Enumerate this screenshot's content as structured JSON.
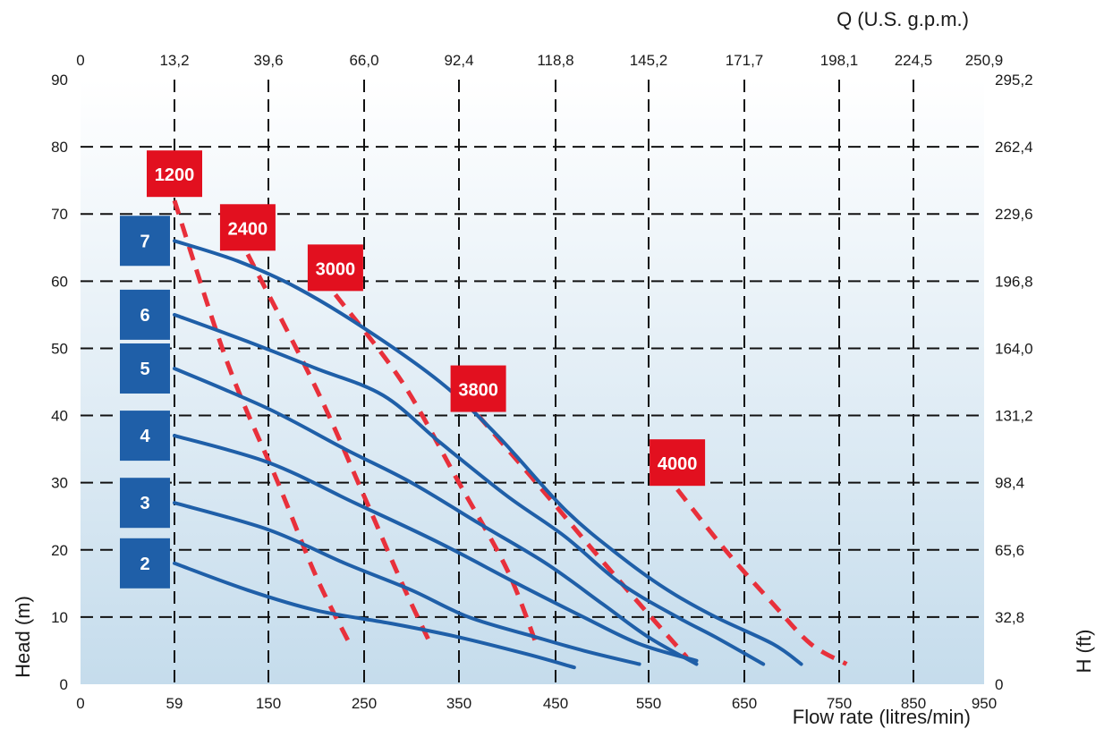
{
  "chart_data": {
    "type": "line",
    "title_top": "Q (U.S. g.p.m.)",
    "xlabel": "Flow rate (litres/min)",
    "ylabel": "Head (m)",
    "ylabel_right": "H (ft)",
    "xlim": [
      0,
      950
    ],
    "ylim": [
      0,
      90
    ],
    "x_ticks": [
      0,
      59,
      150,
      250,
      350,
      450,
      550,
      650,
      750,
      850,
      950
    ],
    "x_tick_labels": [
      "0",
      "59",
      "150",
      "250",
      "350",
      "450",
      "550",
      "650",
      "750",
      "850",
      "950"
    ],
    "x_top_ticks": [
      0,
      59,
      150,
      250,
      350,
      450,
      550,
      650,
      750,
      850,
      950
    ],
    "x_top_tick_labels": [
      "0",
      "13,2",
      "39,6",
      "66,0",
      "92,4",
      "118,8",
      "145,2",
      "171,7",
      "198,1",
      "224,5",
      "250,9"
    ],
    "y_ticks": [
      0,
      10,
      20,
      30,
      40,
      50,
      60,
      70,
      80,
      90
    ],
    "y_tick_labels": [
      "0",
      "10",
      "20",
      "30",
      "40",
      "50",
      "60",
      "70",
      "80",
      "90"
    ],
    "y_right_tick_labels": [
      "0",
      "32,8",
      "65,6",
      "98,4",
      "131,2",
      "164,0",
      "196,8",
      "229,6",
      "262,4",
      "295,2"
    ],
    "grid": true,
    "colors": {
      "curve": "#1f5fa8",
      "badge_blue": "#1f5fa8",
      "badge_red": "#e2101f",
      "dashed": "#e8303b",
      "bg_top": "#ffffff",
      "bg_bottom": "#c5dcec"
    },
    "series": [
      {
        "name": "7",
        "x": [
          59,
          120,
          180,
          250,
          330,
          390,
          460,
          520,
          570,
          620,
          680,
          710
        ],
        "y": [
          66,
          63,
          59,
          53,
          45,
          37,
          26,
          19,
          14,
          10,
          6,
          3
        ]
      },
      {
        "name": "6",
        "x": [
          59,
          130,
          200,
          270,
          330,
          400,
          460,
          520,
          580,
          620,
          670
        ],
        "y": [
          55,
          51,
          47,
          43,
          36,
          28,
          22,
          15,
          10,
          7,
          3
        ]
      },
      {
        "name": "5",
        "x": [
          59,
          150,
          230,
          300,
          370,
          440,
          500,
          550,
          600
        ],
        "y": [
          47,
          41,
          35,
          30,
          24,
          18,
          12,
          7,
          3
        ]
      },
      {
        "name": "4",
        "x": [
          59,
          150,
          240,
          330,
          410,
          480,
          540,
          600
        ],
        "y": [
          37,
          33,
          27,
          21,
          15,
          10,
          6,
          3.5
        ]
      },
      {
        "name": "3",
        "x": [
          59,
          150,
          230,
          300,
          360,
          430,
          480,
          540
        ],
        "y": [
          27,
          23,
          18,
          14,
          10,
          7,
          5,
          3
        ]
      },
      {
        "name": "2",
        "x": [
          59,
          130,
          200,
          280,
          350,
          420,
          470
        ],
        "y": [
          18,
          14,
          11,
          9,
          7,
          4.5,
          2.5
        ]
      }
    ],
    "iso_lines": [
      {
        "name": "1200",
        "x": [
          59,
          110,
          160,
          200,
          235
        ],
        "y": [
          72,
          48,
          30,
          16,
          6
        ]
      },
      {
        "name": "2400",
        "x": [
          130,
          200,
          250,
          290,
          320
        ],
        "y": [
          64,
          44,
          28,
          15,
          6
        ]
      },
      {
        "name": "3000",
        "x": [
          220,
          290,
          350,
          400,
          430
        ],
        "y": [
          58,
          45,
          30,
          17,
          6
        ]
      },
      {
        "name": "3800",
        "x": [
          370,
          430,
          490,
          540,
          590
        ],
        "y": [
          40,
          30,
          20,
          12,
          4
        ]
      },
      {
        "name": "4000",
        "x": [
          580,
          630,
          680,
          720,
          760
        ],
        "y": [
          29,
          20,
          12,
          6,
          3
        ]
      }
    ],
    "badges_blue": [
      "7",
      "6",
      "5",
      "4",
      "3",
      "2"
    ],
    "badges_red": [
      "1200",
      "2400",
      "3000",
      "3800",
      "4000"
    ]
  }
}
